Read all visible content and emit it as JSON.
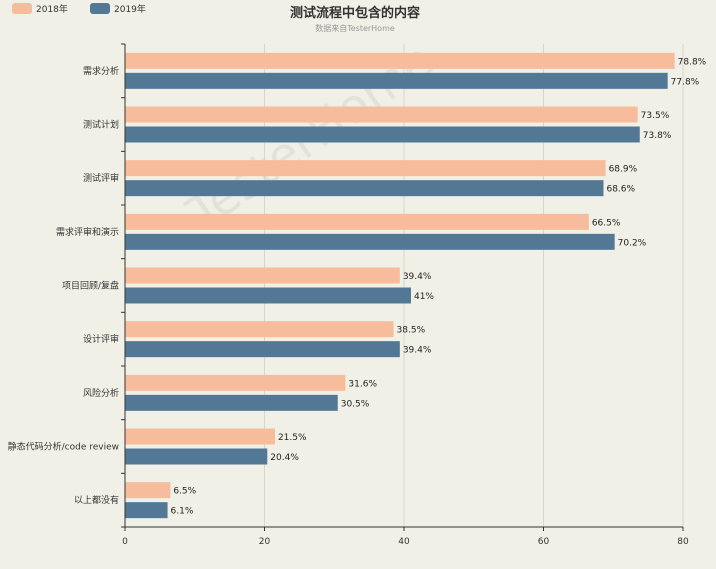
{
  "chart_data": {
    "type": "bar",
    "orientation": "horizontal",
    "title": "测试流程中包含的内容",
    "subtitle": "数据来自TesterHome",
    "watermark": "TesterHome",
    "categories": [
      "需求分析",
      "测试计划",
      "测试评审",
      "需求评审和演示",
      "项目回顾/复盘",
      "设计评审",
      "风险分析",
      "静态代码分析/code review",
      "以上都没有"
    ],
    "series": [
      {
        "name": "2018年",
        "color": "#f7bc9c",
        "values": [
          78.8,
          73.5,
          68.9,
          66.5,
          39.4,
          38.5,
          31.6,
          21.5,
          6.5
        ],
        "labels": [
          "78.8%",
          "73.5%",
          "68.9%",
          "66.5%",
          "39.4%",
          "38.5%",
          "31.6%",
          "21.5%",
          "6.5%"
        ]
      },
      {
        "name": "2019年",
        "color": "#527896",
        "values": [
          77.8,
          73.8,
          68.6,
          70.2,
          41,
          39.4,
          30.5,
          20.4,
          6.1
        ],
        "labels": [
          "77.8%",
          "73.8%",
          "68.6%",
          "70.2%",
          "41%",
          "39.4%",
          "30.5%",
          "20.4%",
          "6.1%"
        ]
      }
    ],
    "xlim": [
      0,
      80
    ],
    "xticks": [
      "0",
      "20",
      "40",
      "60",
      "80"
    ],
    "grid": true,
    "legend_position": "top-left"
  }
}
